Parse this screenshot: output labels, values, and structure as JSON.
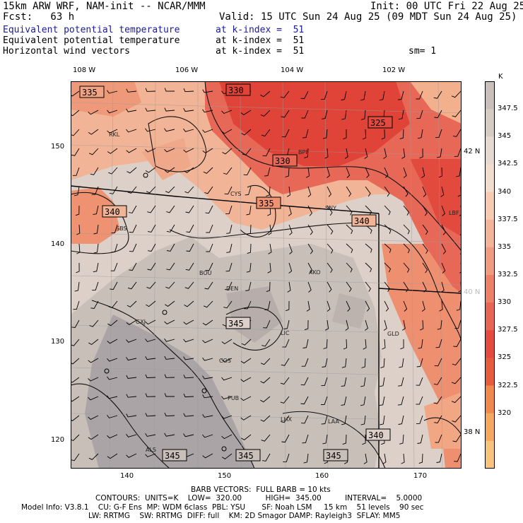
{
  "header": {
    "line1_left": "15km ARW WRF, NAM-init -- NCAR/MMM",
    "line1_right": "Init: 00 UTC Fri 22 Aug 25",
    "line2_left": "Fcst:   63 h",
    "line2_right": "Valid: 15 UTC Sun 24 Aug 25 (09 MDT Sun 24 Aug 25)",
    "field1_name": "Equivalent potential temperature",
    "field1_level": "at k-index =  51",
    "field2_name": "Equivalent potential temperature",
    "field2_level": "at k-index =  51",
    "field3_name": "Horizontal wind vectors",
    "field3_level": "at k-index =  51",
    "smoothing": "sm= 1"
  },
  "map": {
    "top_lon_labels": [
      "108 W",
      "106 W",
      "104 W",
      "102 W"
    ],
    "left_y_labels": [
      "150",
      "140",
      "130",
      "120"
    ],
    "bottom_x_labels": [
      "140",
      "150",
      "160",
      "170"
    ],
    "right_lat_labels": [
      "42 N",
      "40 N",
      "38 N"
    ],
    "stations": [
      "RKL",
      "BPF",
      "CYS",
      "SNY",
      "SBS",
      "BOU",
      "DEN",
      "AKO",
      "GXJ",
      "LIC",
      "GLD",
      "COS",
      "PUB",
      "LHX",
      "LAA",
      "ALS",
      "LBF"
    ],
    "contour_labels": [
      "335",
      "330",
      "325",
      "330",
      "335",
      "340",
      "340",
      "345",
      "340",
      "345",
      "345",
      "345"
    ],
    "colors": {
      "light": "#d8ccc5",
      "grey": "#c2b8b2",
      "dark_grey": "#a7a2a6",
      "pink": "#f2b496",
      "mid": "#ec8a6c",
      "red": "#e65040",
      "deep": "#de3a30"
    }
  },
  "colorbar": {
    "unit": "K",
    "ticks": [
      "347.5",
      "345",
      "342.5",
      "340",
      "337.5",
      "335",
      "332.5",
      "330",
      "327.5",
      "325",
      "322.5",
      "320"
    ],
    "colors": [
      "#c9c0bc",
      "#d6ccc6",
      "#e6d9cf",
      "#f2dccb",
      "#f6cbb2",
      "#f3b49a",
      "#f09c80",
      "#ec8068",
      "#e86454",
      "#e44a40",
      "#e85c3e",
      "#f08a4c",
      "#f5a860",
      "#f8c37c"
    ]
  },
  "footer": {
    "line1": "BARB VECTORS:  FULL BARB = 10 kts",
    "line2": "CONTOURS:  UNITS=K    LOW=  320.00          HIGH=  345.00          INTERVAL=    5.0000",
    "line3": "Model Info: V3.8.1    CU: G-F Ens  MP: WDM 6class  PBL: YSU       SF: Noah LSM     15 km    51 levels    90 sec",
    "line4": "LW: RRTMG    SW: RRTMG  DIFF: full    KM: 2D Smagor DAMP: Rayleigh3  SFLAY: MM5"
  }
}
